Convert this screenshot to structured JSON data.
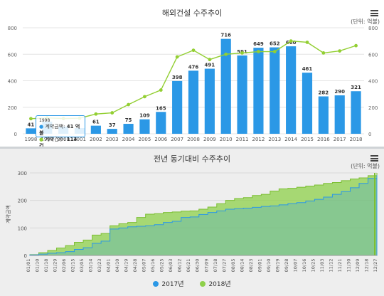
{
  "top_chart": {
    "title": "해외건설 수주추이",
    "unit": "(단위: 억불)",
    "menu_icon": "hamburger-menu-icon"
  },
  "bottom_chart": {
    "title": "전년 동기대비 수주추이",
    "unit": "(단위: 억불)",
    "menu_icon": "hamburger-menu-icon",
    "ylabel": "계약금액"
  },
  "tooltip": {
    "year": "1998",
    "amount_label": "계약금액:",
    "amount_value": "41 억불",
    "count_label": "계약건수:",
    "count_value": "114 건"
  },
  "legend": {
    "item1": "2017년",
    "item2": "2018년"
  },
  "colors": {
    "bar": "#2b98e6",
    "line": "#93cf33",
    "area2017": "#2b98e6",
    "area2018": "#8ed04a"
  },
  "chart_data": [
    {
      "type": "bar",
      "title": "해외건설 수주추이",
      "categories": [
        "1998",
        "1999",
        "2000",
        "2001",
        "2002",
        "2003",
        "2004",
        "2005",
        "2006",
        "2007",
        "2008",
        "2009",
        "2010",
        "2011",
        "2012",
        "2013",
        "2014",
        "2015",
        "2016",
        "2017",
        "2018"
      ],
      "series": [
        {
          "type": "bar",
          "values": [
            41,
            92,
            54,
            43,
            61,
            37,
            75,
            109,
            165,
            398,
            476,
            491,
            716,
            591,
            649,
            652,
            660,
            461,
            282,
            290,
            321
          ],
          "labels": [
            "41",
            "",
            "",
            "",
            "61",
            "37",
            "75",
            "109",
            "165",
            "398",
            "476",
            "491",
            "716",
            "591",
            "649",
            "652",
            "660",
            "461",
            "282",
            "290",
            "321"
          ]
        },
        {
          "type": "line",
          "values": [
            114,
            120,
            115,
            118,
            149,
            158,
            220,
            280,
            330,
            580,
            630,
            560,
            600,
            610,
            620,
            620,
            700,
            690,
            610,
            625,
            665
          ]
        }
      ],
      "ylim": [
        0,
        800
      ],
      "yticks": [
        "0",
        "200",
        "400",
        "600",
        "800"
      ],
      "y2ticks": [
        "0",
        "200",
        "400",
        "600",
        "800"
      ],
      "grid": true
    },
    {
      "type": "area",
      "title": "전년 동기대비 수주추이",
      "ylabel": "계약금액",
      "ylim": [
        0,
        300
      ],
      "yticks": [
        "0",
        "100",
        "200",
        "300"
      ],
      "categories": [
        "01/01",
        "01/10",
        "01/18",
        "01/29",
        "02/06",
        "02/15",
        "03/05",
        "03/14",
        "03/23",
        "04/01",
        "04/10",
        "04/19",
        "04/28",
        "05/07",
        "05/16",
        "05/25",
        "06/03",
        "06/12",
        "06/21",
        "06/30",
        "07/09",
        "07/18",
        "07/27",
        "08/05",
        "08/14",
        "08/23",
        "09/01",
        "09/10",
        "09/19",
        "09/28",
        "10/07",
        "10/16",
        "10/25",
        "11/03",
        "11/12",
        "11/21",
        "11/30",
        "12/09",
        "12/18",
        "12/27"
      ],
      "series": [
        {
          "name": "2017년",
          "values": [
            2,
            5,
            8,
            10,
            14,
            22,
            28,
            44,
            52,
            96,
            100,
            104,
            106,
            108,
            112,
            120,
            124,
            138,
            140,
            149,
            156,
            162,
            168,
            170,
            172,
            175,
            178,
            180,
            184,
            188,
            192,
            198,
            204,
            212,
            222,
            232,
            246,
            262,
            280,
            292
          ]
        },
        {
          "name": "2018년",
          "values": [
            3,
            10,
            18,
            27,
            36,
            48,
            56,
            74,
            80,
            108,
            115,
            120,
            138,
            150,
            152,
            156,
            158,
            161,
            162,
            168,
            176,
            188,
            200,
            207,
            210,
            218,
            222,
            234,
            242,
            244,
            248,
            252,
            256,
            262,
            265,
            272,
            278,
            282,
            290,
            300
          ]
        }
      ],
      "legend": [
        "2017년",
        "2018년"
      ],
      "legend_position": "bottom"
    }
  ]
}
